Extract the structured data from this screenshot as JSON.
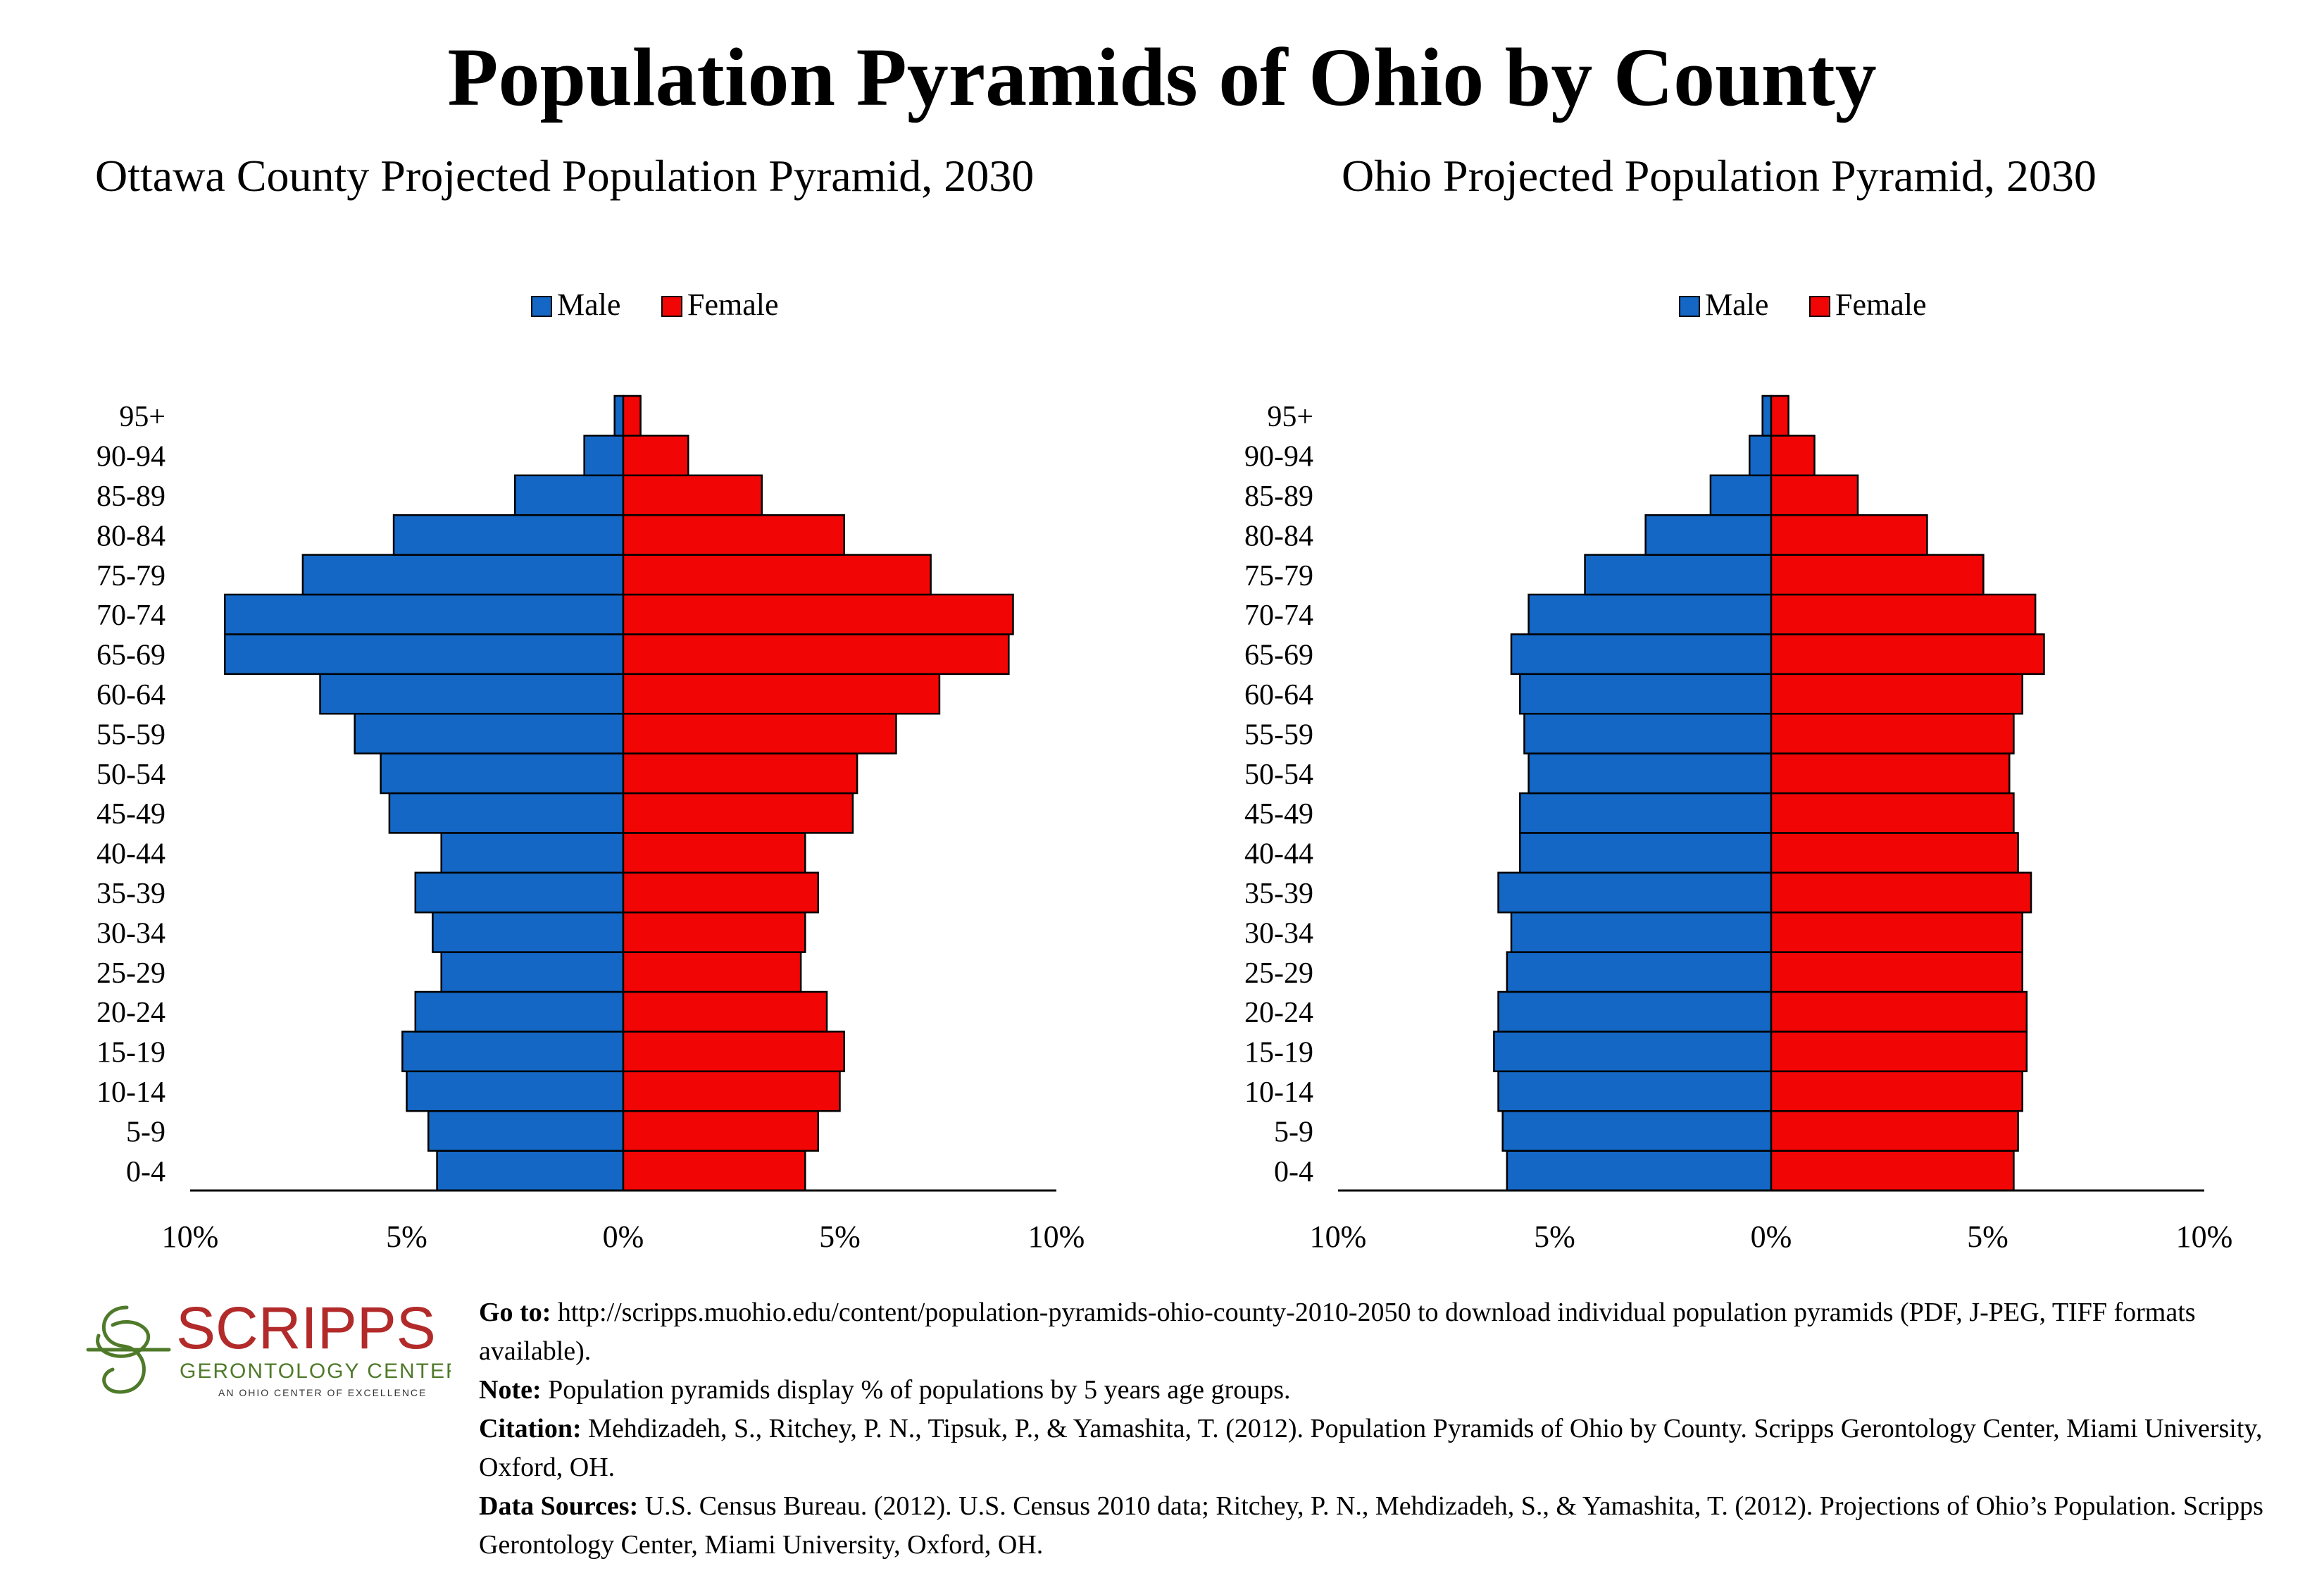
{
  "page": {
    "title": "Population Pyramids of Ohio by County"
  },
  "colors": {
    "male": "#1467C4",
    "female": "#F20505",
    "outline": "#000000"
  },
  "chart_data": [
    {
      "type": "bar",
      "orientation": "population-pyramid",
      "title": "Ottawa County Projected Population Pyramid, 2030",
      "categories": [
        "0-4",
        "5-9",
        "10-14",
        "15-19",
        "20-24",
        "25-29",
        "30-34",
        "35-39",
        "40-44",
        "45-49",
        "50-54",
        "55-59",
        "60-64",
        "65-69",
        "70-74",
        "75-79",
        "80-84",
        "85-89",
        "90-94",
        "95+"
      ],
      "series": [
        {
          "name": "Male",
          "values": [
            4.3,
            4.5,
            5.0,
            5.1,
            4.8,
            4.2,
            4.4,
            4.8,
            4.2,
            5.4,
            5.6,
            6.2,
            7.0,
            9.2,
            9.2,
            7.4,
            5.3,
            2.5,
            0.9,
            0.2
          ]
        },
        {
          "name": "Female",
          "values": [
            4.2,
            4.5,
            5.0,
            5.1,
            4.7,
            4.1,
            4.2,
            4.5,
            4.2,
            5.3,
            5.4,
            6.3,
            7.3,
            8.9,
            9.0,
            7.1,
            5.1,
            3.2,
            1.5,
            0.4
          ]
        }
      ],
      "xlim": [
        -10,
        10
      ],
      "ticks": [
        "10%",
        "5%",
        "0%",
        "5%",
        "10%"
      ],
      "legend": "top-center"
    },
    {
      "type": "bar",
      "orientation": "population-pyramid",
      "title": "Ohio Projected Population Pyramid, 2030",
      "categories": [
        "0-4",
        "5-9",
        "10-14",
        "15-19",
        "20-24",
        "25-29",
        "30-34",
        "35-39",
        "40-44",
        "45-49",
        "50-54",
        "55-59",
        "60-64",
        "65-69",
        "70-74",
        "75-79",
        "80-84",
        "85-89",
        "90-94",
        "95+"
      ],
      "series": [
        {
          "name": "Male",
          "values": [
            6.1,
            6.2,
            6.3,
            6.4,
            6.3,
            6.1,
            6.0,
            6.3,
            5.8,
            5.8,
            5.6,
            5.7,
            5.8,
            6.0,
            5.6,
            4.3,
            2.9,
            1.4,
            0.5,
            0.2
          ]
        },
        {
          "name": "Female",
          "values": [
            5.6,
            5.7,
            5.8,
            5.9,
            5.9,
            5.8,
            5.8,
            6.0,
            5.7,
            5.6,
            5.5,
            5.6,
            5.8,
            6.3,
            6.1,
            4.9,
            3.6,
            2.0,
            1.0,
            0.4
          ]
        }
      ],
      "xlim": [
        -10,
        10
      ],
      "ticks": [
        "10%",
        "5%",
        "0%",
        "5%",
        "10%"
      ],
      "legend": "top-center"
    }
  ],
  "logo": {
    "name": "SCRIPPS",
    "subtitle": "GERONTOLOGY CENTER",
    "tagline": "AN OHIO CENTER OF EXCELLENCE"
  },
  "notes": {
    "goto_label": "Go to:",
    "goto_text": "http://scripps.muohio.edu/content/population-pyramids-ohio-county-2010-2050 to download individual population pyramids (PDF, J-PEG, TIFF formats available).",
    "note_label": "Note:",
    "note_text": "Population pyramids display % of populations by 5 years age groups.",
    "citation_label": "Citation:",
    "citation_text": "Mehdizadeh, S., Ritchey, P. N., Tipsuk, P., & Yamashita, T. (2012). Population Pyramids of Ohio by County. Scripps Gerontology Center, Miami University, Oxford, OH.",
    "sources_label": "Data Sources:",
    "sources_text": "U.S. Census Bureau. (2012). U.S. Census 2010 data; Ritchey, P. N., Mehdizadeh, S., & Yamashita, T. (2012). Projections of Ohio’s Population. Scripps Gerontology Center, Miami University, Oxford, OH."
  }
}
